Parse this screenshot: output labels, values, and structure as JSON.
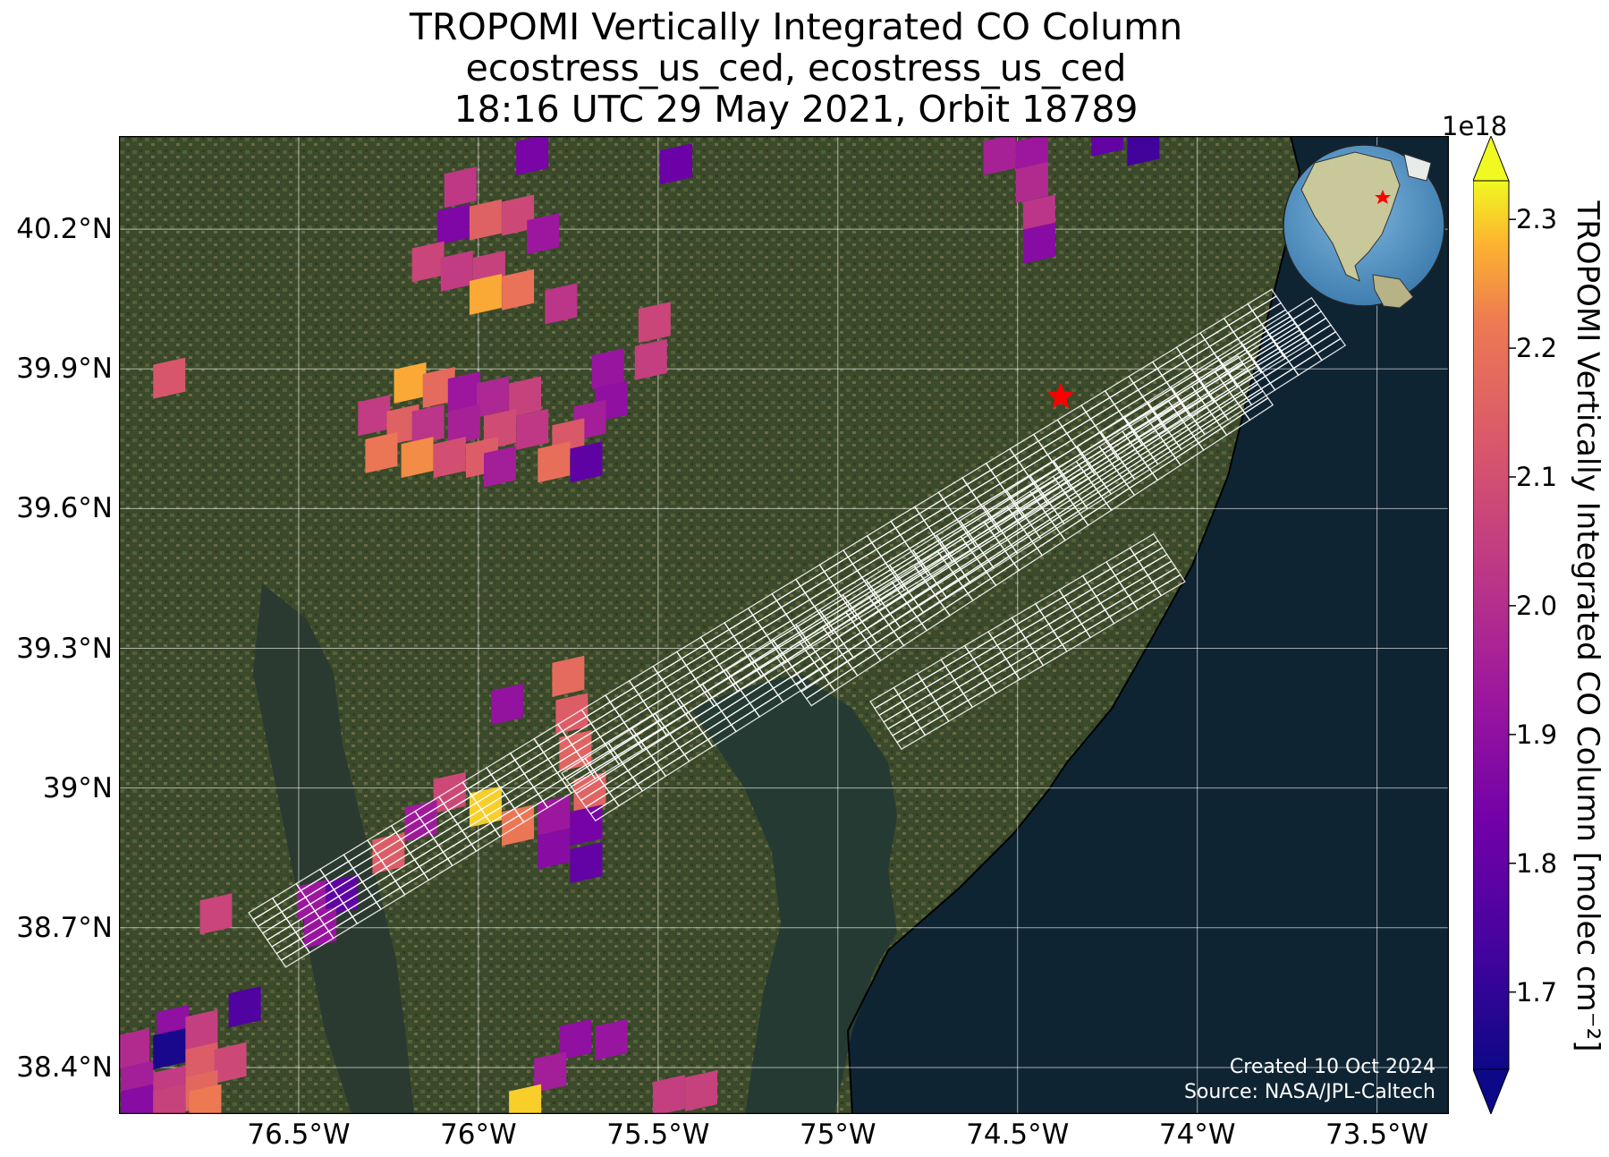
{
  "title": {
    "line1": "TROPOMI Vertically Integrated CO Column",
    "line2": "ecostress_us_ced, ecostress_us_ced",
    "line3": "18:16 UTC 29 May 2021, Orbit 18789"
  },
  "map": {
    "extent": {
      "lon_min": -77.0,
      "lon_max": -73.3,
      "lat_min": 38.3,
      "lat_max": 40.4
    },
    "lat_ticks": [
      {
        "value": 40.2,
        "label": "40.2°N"
      },
      {
        "value": 39.9,
        "label": "39.9°N"
      },
      {
        "value": 39.6,
        "label": "39.6°N"
      },
      {
        "value": 39.3,
        "label": "39.3°N"
      },
      {
        "value": 39.0,
        "label": "39°N"
      },
      {
        "value": 38.7,
        "label": "38.7°N"
      },
      {
        "value": 38.4,
        "label": "38.4°N"
      }
    ],
    "lon_ticks": [
      {
        "value": -76.5,
        "label": "76.5°W"
      },
      {
        "value": -76.0,
        "label": "76°W"
      },
      {
        "value": -75.5,
        "label": "75.5°W"
      },
      {
        "value": -75.0,
        "label": "75°W"
      },
      {
        "value": -74.5,
        "label": "74.5°W"
      },
      {
        "value": -74.0,
        "label": "74°W"
      },
      {
        "value": -73.5,
        "label": "73.5°W"
      }
    ],
    "site_marker": {
      "lon": -74.38,
      "lat": 39.84,
      "color": "#ff0000"
    },
    "colors": {
      "land": "#3b4a2a",
      "ocean": "#0f2433",
      "bay": "#2a3a2c",
      "coastline": "#000000",
      "footprint": "#ffffff",
      "grid": "#ffffff"
    },
    "credit_line1": "Created 10 Oct 2024",
    "credit_line2": "Source: NASA/JPL-Caltech",
    "inset_globe": {
      "ocean": "#4f8fc0",
      "land": "#c9c89a",
      "marker_color": "#ff0000"
    }
  },
  "colorbar": {
    "label": "TROPOMI Vertically Integrated CO Column [molec cm⁻²]",
    "exponent": "1e18",
    "vmin": 1.64,
    "vmax": 2.33,
    "ticks": [
      "1.7",
      "1.8",
      "1.9",
      "2.0",
      "2.1",
      "2.2",
      "2.3"
    ],
    "tick_values": [
      1.7,
      1.8,
      1.9,
      2.0,
      2.1,
      2.2,
      2.3
    ],
    "colormap": "plasma",
    "extend": "both"
  },
  "co_pixels": [
    {
      "lon": -75.85,
      "lat": 40.36,
      "v": 1.85
    },
    {
      "lon": -75.45,
      "lat": 40.34,
      "v": 1.82
    },
    {
      "lon": -76.05,
      "lat": 40.29,
      "v": 2.03
    },
    {
      "lon": -76.07,
      "lat": 40.21,
      "v": 1.86
    },
    {
      "lon": -75.98,
      "lat": 40.22,
      "v": 2.15
    },
    {
      "lon": -75.89,
      "lat": 40.23,
      "v": 2.08
    },
    {
      "lon": -75.82,
      "lat": 40.19,
      "v": 1.93
    },
    {
      "lon": -76.14,
      "lat": 40.13,
      "v": 2.07
    },
    {
      "lon": -76.06,
      "lat": 40.11,
      "v": 2.04
    },
    {
      "lon": -75.97,
      "lat": 40.11,
      "v": 2.06
    },
    {
      "lon": -75.98,
      "lat": 40.06,
      "v": 2.27
    },
    {
      "lon": -75.89,
      "lat": 40.07,
      "v": 2.2
    },
    {
      "lon": -75.77,
      "lat": 40.04,
      "v": 2.02
    },
    {
      "lon": -75.51,
      "lat": 40.0,
      "v": 2.07
    },
    {
      "lon": -75.52,
      "lat": 39.92,
      "v": 2.05
    },
    {
      "lon": -75.64,
      "lat": 39.9,
      "v": 1.92
    },
    {
      "lon": -75.63,
      "lat": 39.83,
      "v": 1.9
    },
    {
      "lon": -75.69,
      "lat": 39.79,
      "v": 1.95
    },
    {
      "lon": -76.86,
      "lat": 39.88,
      "v": 2.12
    },
    {
      "lon": -76.19,
      "lat": 39.87,
      "v": 2.27
    },
    {
      "lon": -76.11,
      "lat": 39.86,
      "v": 2.18
    },
    {
      "lon": -76.04,
      "lat": 39.85,
      "v": 1.93
    },
    {
      "lon": -75.96,
      "lat": 39.84,
      "v": 1.98
    },
    {
      "lon": -75.87,
      "lat": 39.84,
      "v": 2.06
    },
    {
      "lon": -76.29,
      "lat": 39.8,
      "v": 2.04
    },
    {
      "lon": -76.21,
      "lat": 39.78,
      "v": 2.15
    },
    {
      "lon": -76.14,
      "lat": 39.78,
      "v": 2.02
    },
    {
      "lon": -76.04,
      "lat": 39.78,
      "v": 1.96
    },
    {
      "lon": -75.94,
      "lat": 39.77,
      "v": 2.09
    },
    {
      "lon": -75.85,
      "lat": 39.77,
      "v": 2.03
    },
    {
      "lon": -75.75,
      "lat": 39.75,
      "v": 2.13
    },
    {
      "lon": -76.27,
      "lat": 39.72,
      "v": 2.21
    },
    {
      "lon": -76.17,
      "lat": 39.71,
      "v": 2.24
    },
    {
      "lon": -76.08,
      "lat": 39.71,
      "v": 2.1
    },
    {
      "lon": -75.99,
      "lat": 39.71,
      "v": 2.14
    },
    {
      "lon": -75.94,
      "lat": 39.69,
      "v": 1.95
    },
    {
      "lon": -75.79,
      "lat": 39.7,
      "v": 2.19
    },
    {
      "lon": -75.7,
      "lat": 39.7,
      "v": 1.79
    },
    {
      "lon": -74.55,
      "lat": 40.36,
      "v": 1.96
    },
    {
      "lon": -74.46,
      "lat": 40.36,
      "v": 1.93
    },
    {
      "lon": -74.46,
      "lat": 40.3,
      "v": 1.99
    },
    {
      "lon": -74.44,
      "lat": 40.23,
      "v": 2.02
    },
    {
      "lon": -74.44,
      "lat": 40.17,
      "v": 1.88
    },
    {
      "lon": -74.25,
      "lat": 40.4,
      "v": 1.8
    },
    {
      "lon": -74.15,
      "lat": 40.38,
      "v": 1.73
    },
    {
      "lon": -75.75,
      "lat": 39.24,
      "v": 2.18
    },
    {
      "lon": -75.74,
      "lat": 39.16,
      "v": 2.14
    },
    {
      "lon": -75.73,
      "lat": 39.08,
      "v": 2.16
    },
    {
      "lon": -75.92,
      "lat": 39.18,
      "v": 1.91
    },
    {
      "lon": -76.08,
      "lat": 38.99,
      "v": 2.08
    },
    {
      "lon": -75.98,
      "lat": 38.96,
      "v": 2.3
    },
    {
      "lon": -75.89,
      "lat": 38.92,
      "v": 2.21
    },
    {
      "lon": -75.79,
      "lat": 38.94,
      "v": 1.93
    },
    {
      "lon": -75.79,
      "lat": 38.87,
      "v": 1.88
    },
    {
      "lon": -75.69,
      "lat": 38.99,
      "v": 2.16
    },
    {
      "lon": -75.7,
      "lat": 38.92,
      "v": 1.84
    },
    {
      "lon": -75.7,
      "lat": 38.84,
      "v": 1.8
    },
    {
      "lon": -76.16,
      "lat": 38.93,
      "v": 1.94
    },
    {
      "lon": -76.25,
      "lat": 38.86,
      "v": 2.14
    },
    {
      "lon": -76.46,
      "lat": 38.76,
      "v": 1.93
    },
    {
      "lon": -76.38,
      "lat": 38.77,
      "v": 1.79
    },
    {
      "lon": -76.44,
      "lat": 38.7,
      "v": 1.92
    },
    {
      "lon": -76.73,
      "lat": 38.73,
      "v": 2.07
    },
    {
      "lon": -76.65,
      "lat": 38.53,
      "v": 1.76
    },
    {
      "lon": -76.85,
      "lat": 38.49,
      "v": 1.9
    },
    {
      "lon": -76.77,
      "lat": 38.48,
      "v": 2.05
    },
    {
      "lon": -76.96,
      "lat": 38.44,
      "v": 1.99
    },
    {
      "lon": -76.86,
      "lat": 38.44,
      "v": 1.66
    },
    {
      "lon": -76.77,
      "lat": 38.41,
      "v": 2.14
    },
    {
      "lon": -76.69,
      "lat": 38.41,
      "v": 2.08
    },
    {
      "lon": -76.95,
      "lat": 38.37,
      "v": 1.95
    },
    {
      "lon": -76.86,
      "lat": 38.36,
      "v": 2.04
    },
    {
      "lon": -76.77,
      "lat": 38.35,
      "v": 2.17
    },
    {
      "lon": -76.76,
      "lat": 38.32,
      "v": 2.22
    },
    {
      "lon": -76.95,
      "lat": 38.32,
      "v": 1.88
    },
    {
      "lon": -76.86,
      "lat": 38.32,
      "v": 2.06
    },
    {
      "lon": -75.73,
      "lat": 38.46,
      "v": 1.9
    },
    {
      "lon": -75.63,
      "lat": 38.46,
      "v": 1.92
    },
    {
      "lon": -75.8,
      "lat": 38.39,
      "v": 1.95
    },
    {
      "lon": -75.47,
      "lat": 38.34,
      "v": 2.05
    },
    {
      "lon": -75.38,
      "lat": 38.35,
      "v": 2.06
    },
    {
      "lon": -75.87,
      "lat": 38.32,
      "v": 2.3
    }
  ]
}
